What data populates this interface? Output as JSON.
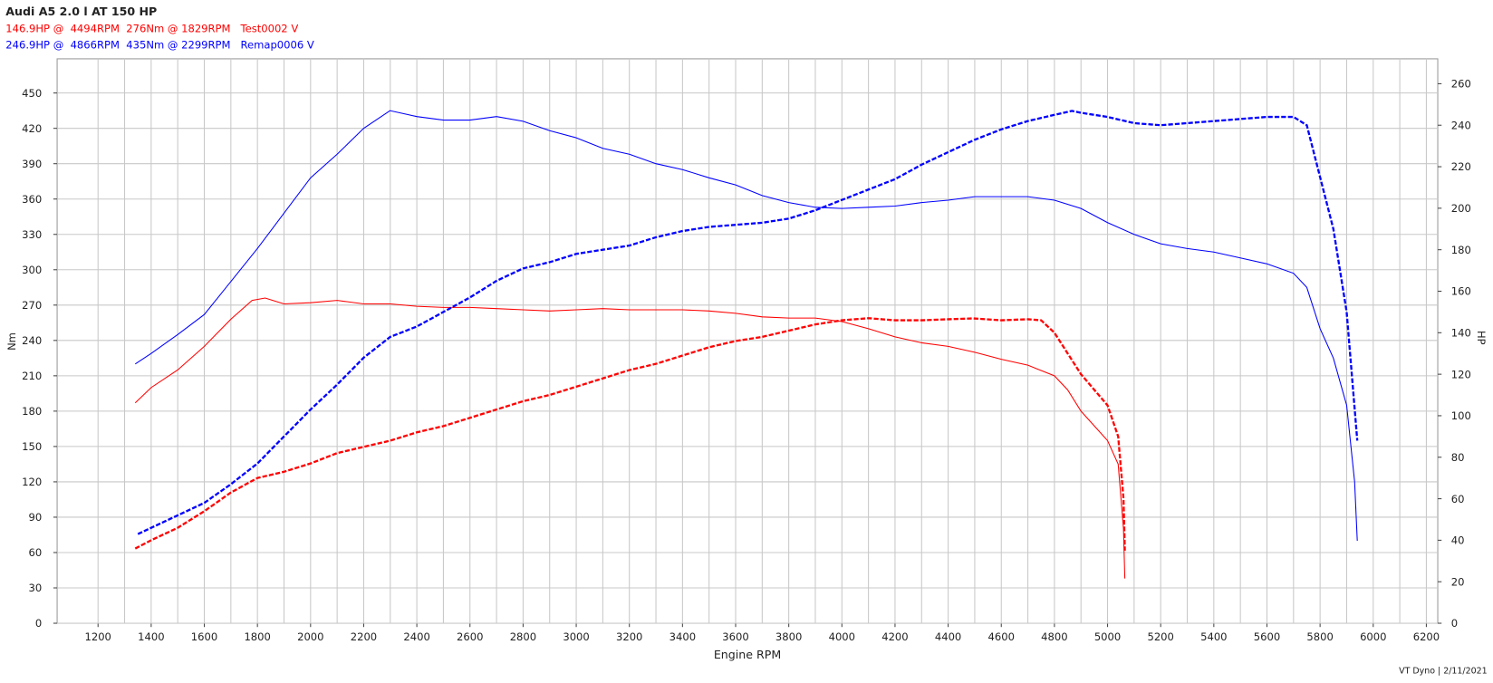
{
  "chart_data": {
    "type": "line",
    "title": "Audi A5 2.0 l AT 150 HP",
    "header_lines": [
      {
        "text": "146.9HP @  4494RPM  276Nm @ 1829RPM   Test0002 V",
        "color": "#ff0000"
      },
      {
        "text": "246.9HP @  4866RPM  435Nm @ 2299RPM   Remap0006 V",
        "color": "#0000ff"
      }
    ],
    "x_label": "Engine RPM",
    "y_label": "Nm",
    "y2_label": "HP",
    "footer": "VT Dyno | 2/11/2021",
    "xlim": [
      1046,
      6243
    ],
    "ylim": [
      0,
      479
    ],
    "y2lim": [
      0,
      272
    ],
    "xticks": [
      1200,
      1400,
      1600,
      1800,
      2000,
      2200,
      2400,
      2600,
      2800,
      3000,
      3200,
      3400,
      3600,
      3800,
      4000,
      4200,
      4400,
      4600,
      4800,
      5000,
      5200,
      5400,
      5600,
      5800,
      6000,
      6200
    ],
    "yticks": [
      0,
      30,
      60,
      90,
      120,
      150,
      180,
      210,
      240,
      270,
      300,
      330,
      360,
      390,
      420,
      450
    ],
    "y2ticks": [
      0,
      20,
      40,
      60,
      80,
      100,
      120,
      140,
      160,
      180,
      200,
      220,
      240,
      260
    ],
    "grid": true,
    "series": [
      {
        "color": "#ff0000",
        "dashed": false,
        "x": [
          1340,
          1400,
          1500,
          1600,
          1700,
          1780,
          1829,
          1900,
          2000,
          2100,
          2200,
          2300,
          2400,
          2500,
          2600,
          2700,
          2800,
          2900,
          3000,
          3100,
          3200,
          3300,
          3400,
          3500,
          3600,
          3700,
          3800,
          3900,
          4000,
          4100,
          4200,
          4300,
          4400,
          4500,
          4600,
          4700,
          4800,
          4850,
          4900,
          5000,
          5040,
          5060,
          5065
        ],
        "values": [
          187,
          200,
          215,
          235,
          258,
          274,
          276,
          271,
          272,
          274,
          271,
          271,
          269,
          268,
          268,
          267,
          266,
          265,
          266,
          267,
          266,
          266,
          266,
          265,
          263,
          260,
          259,
          259,
          256,
          250,
          243,
          238,
          235,
          230,
          224,
          219,
          210,
          198,
          180,
          155,
          135,
          80,
          38
        ]
      },
      {
        "color": "#ff0000",
        "dashed": true,
        "axis": "y2",
        "x": [
          1340,
          1400,
          1500,
          1600,
          1700,
          1800,
          1900,
          2000,
          2100,
          2200,
          2300,
          2400,
          2500,
          2600,
          2700,
          2800,
          2900,
          3000,
          3100,
          3200,
          3300,
          3400,
          3500,
          3600,
          3700,
          3800,
          3900,
          4000,
          4100,
          4200,
          4300,
          4400,
          4494,
          4600,
          4700,
          4750,
          4800,
          4900,
          5000,
          5040,
          5060,
          5065
        ],
        "values": [
          36,
          40,
          46,
          54,
          63,
          70,
          73,
          77,
          82,
          85,
          88,
          92,
          95,
          99,
          103,
          107,
          110,
          114,
          118,
          122,
          125,
          129,
          133,
          136,
          138,
          141,
          144,
          146,
          147,
          146,
          146,
          146.5,
          146.9,
          146,
          146.5,
          146,
          140,
          120,
          105,
          90,
          60,
          35
        ]
      },
      {
        "color": "#0000ff",
        "dashed": false,
        "x": [
          1340,
          1400,
          1500,
          1600,
          1700,
          1800,
          1900,
          2000,
          2100,
          2200,
          2299,
          2400,
          2500,
          2600,
          2700,
          2800,
          2900,
          3000,
          3100,
          3200,
          3300,
          3400,
          3500,
          3600,
          3700,
          3800,
          3900,
          4000,
          4100,
          4200,
          4300,
          4400,
          4500,
          4600,
          4700,
          4800,
          4900,
          5000,
          5100,
          5200,
          5300,
          5400,
          5500,
          5600,
          5700,
          5750,
          5800,
          5850,
          5900,
          5930,
          5940
        ],
        "values": [
          220,
          229,
          245,
          262,
          290,
          318,
          348,
          378,
          398,
          420,
          435,
          430,
          427,
          427,
          430,
          426,
          418,
          412,
          403,
          398,
          390,
          385,
          378,
          372,
          363,
          357,
          353,
          352,
          353,
          354,
          357,
          359,
          362,
          362,
          362,
          359,
          352,
          340,
          330,
          322,
          318,
          315,
          310,
          305,
          297,
          285,
          250,
          225,
          185,
          120,
          70
        ]
      },
      {
        "color": "#0000ff",
        "dashed": true,
        "axis": "y2",
        "x": [
          1350,
          1400,
          1500,
          1600,
          1700,
          1800,
          1900,
          2000,
          2100,
          2200,
          2300,
          2400,
          2500,
          2600,
          2700,
          2800,
          2900,
          3000,
          3100,
          3200,
          3300,
          3400,
          3500,
          3600,
          3700,
          3800,
          3900,
          4000,
          4100,
          4200,
          4300,
          4400,
          4500,
          4600,
          4700,
          4800,
          4866,
          4900,
          5000,
          5100,
          5200,
          5300,
          5400,
          5500,
          5600,
          5700,
          5750,
          5800,
          5850,
          5900,
          5940
        ],
        "values": [
          43,
          46,
          52,
          58,
          67,
          77,
          90,
          103,
          115,
          128,
          138,
          143,
          150,
          157,
          165,
          171,
          174,
          178,
          180,
          182,
          186,
          189,
          191,
          192,
          193,
          195,
          199,
          204,
          209,
          214,
          221,
          227,
          233,
          238,
          242,
          245,
          246.9,
          246,
          244,
          241,
          240,
          241,
          242,
          243,
          244,
          244,
          240,
          215,
          190,
          150,
          88
        ]
      }
    ]
  }
}
